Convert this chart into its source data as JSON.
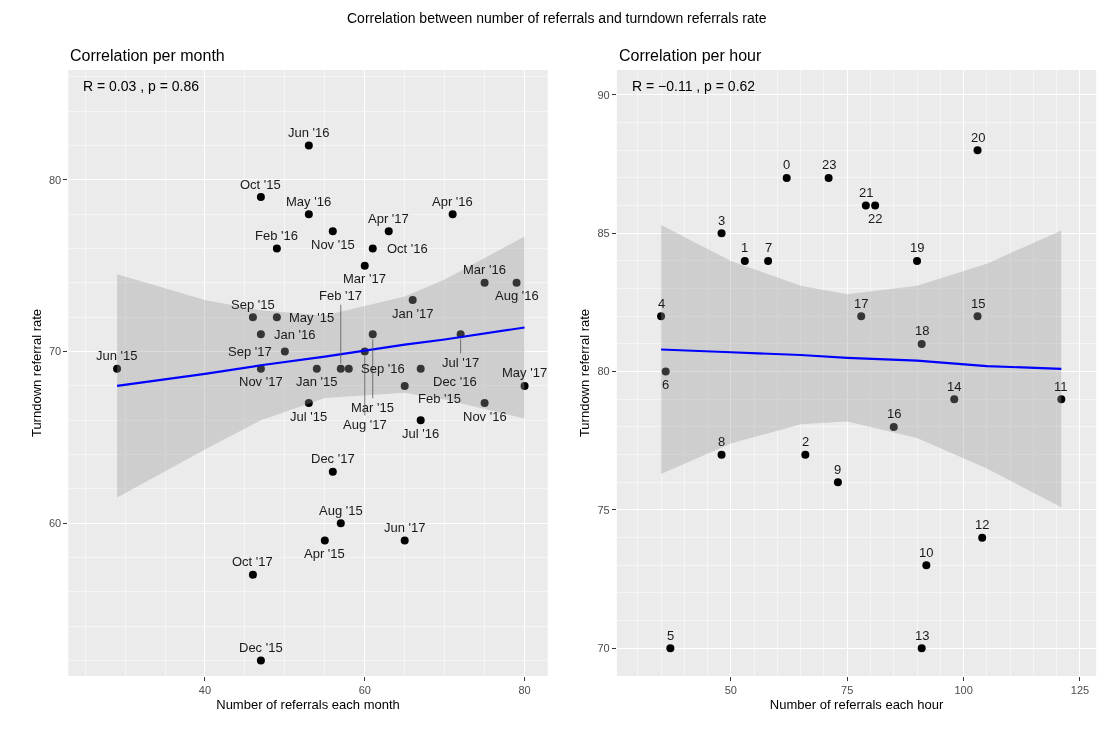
{
  "chart_data": [
    {
      "type": "scatter",
      "title": "Correlation per month",
      "xlabel": "Number of referrals each month",
      "ylabel": "Turndown referral rate",
      "xlim": [
        22.9,
        82.9
      ],
      "ylim": [
        51.1,
        86.4
      ],
      "xticks": [
        40,
        60,
        80
      ],
      "yticks": [
        60,
        70,
        80
      ],
      "grid": true,
      "series": [
        {
          "type": "scatter",
          "marker": "circle",
          "color": "#000000",
          "x": [
            53,
            47,
            53,
            56,
            63,
            71,
            49,
            61,
            60,
            75,
            79,
            66,
            46,
            49,
            47,
            61,
            72,
            50,
            60,
            29,
            47,
            54,
            57,
            58,
            67,
            65,
            80,
            75,
            53,
            67,
            56,
            57,
            55,
            65,
            46,
            47
          ],
          "values": [
            82,
            79,
            78,
            77,
            77,
            78,
            76,
            76,
            75,
            74,
            74,
            73,
            72,
            72,
            71,
            71,
            71,
            70,
            70,
            69,
            69,
            69,
            69,
            69,
            69,
            68,
            68,
            67,
            67,
            66,
            63,
            60,
            59,
            59,
            57,
            52
          ]
        },
        {
          "type": "line",
          "color": "#0000ff",
          "x": [
            29,
            40,
            47,
            55,
            65,
            70,
            80
          ],
          "values": [
            68.0,
            68.7,
            69.2,
            69.7,
            70.4,
            70.7,
            71.4
          ],
          "lower": [
            61.5,
            64.3,
            66.0,
            67.3,
            67.6,
            67.2,
            66.1
          ],
          "upper": [
            74.5,
            73.0,
            72.4,
            72.1,
            73.2,
            74.2,
            76.7
          ]
        }
      ],
      "annotations": [
        "Correlation between number of referrals and turndown referrals rate",
        "R = 0.03 , p = 0.86",
        {
          "text": "Jun '16",
          "x": 53,
          "y": 82
        },
        {
          "text": "Oct '15",
          "x": 47,
          "y": 79
        },
        {
          "text": "May '16",
          "x": 53,
          "y": 78
        },
        {
          "text": "Nov '15",
          "x": 56,
          "y": 77
        },
        {
          "text": "Apr '17",
          "x": 63,
          "y": 77
        },
        {
          "text": "Apr '16",
          "x": 71,
          "y": 78
        },
        {
          "text": "Feb '16",
          "x": 49,
          "y": 76
        },
        {
          "text": "Oct '16",
          "x": 61,
          "y": 76
        },
        {
          "text": "Mar '17",
          "x": 60,
          "y": 75
        },
        {
          "text": "Mar '16",
          "x": 75,
          "y": 74
        },
        {
          "text": "Aug '16",
          "x": 79,
          "y": 74
        },
        {
          "text": "Jan '17",
          "x": 66,
          "y": 73
        },
        {
          "text": "Sep '15",
          "x": 46,
          "y": 72
        },
        {
          "text": "May '15",
          "x": 49,
          "y": 72
        },
        {
          "text": "Jan '16",
          "x": 47,
          "y": 71
        },
        {
          "text": "Mar '15",
          "x": 61,
          "y": 71
        },
        {
          "text": "Jul '17",
          "x": 72,
          "y": 71
        },
        {
          "text": "Sep '17",
          "x": 50,
          "y": 70
        },
        {
          "text": "Aug '17",
          "x": 60,
          "y": 70
        },
        {
          "text": "Jun '15",
          "x": 29,
          "y": 69
        },
        {
          "text": "Nov '17",
          "x": 47,
          "y": 69
        },
        {
          "text": "Jan '15",
          "x": 54,
          "y": 69
        },
        {
          "text": "Feb '17",
          "x": 57,
          "y": 69
        },
        {
          "text": "Sep '16",
          "x": 58,
          "y": 69
        },
        {
          "text": "Dec '16",
          "x": 67,
          "y": 69
        },
        {
          "text": "Feb '15",
          "x": 65,
          "y": 68
        },
        {
          "text": "May '17",
          "x": 80,
          "y": 68
        },
        {
          "text": "Nov '16",
          "x": 75,
          "y": 67
        },
        {
          "text": "Jul '15",
          "x": 53,
          "y": 67
        },
        {
          "text": "Jul '16",
          "x": 67,
          "y": 66
        },
        {
          "text": "Dec '17",
          "x": 56,
          "y": 63
        },
        {
          "text": "Aug '15",
          "x": 57,
          "y": 60
        },
        {
          "text": "Apr '15",
          "x": 55,
          "y": 59
        },
        {
          "text": "Jun '17",
          "x": 65,
          "y": 59
        },
        {
          "text": "Oct '17",
          "x": 46,
          "y": 57
        },
        {
          "text": "Dec '15",
          "x": 47,
          "y": 52
        }
      ]
    },
    {
      "type": "scatter",
      "title": "Correlation per hour",
      "xlabel": "Number of referrals each hour",
      "ylabel": "Turndown referral rate",
      "xlim": [
        25.5,
        128.5
      ],
      "ylim": [
        69.0,
        90.9
      ],
      "xticks": [
        50,
        75,
        100,
        125
      ],
      "yticks": [
        70,
        75,
        80,
        85,
        90
      ],
      "grid": true,
      "series": [
        {
          "type": "scatter",
          "marker": "circle",
          "color": "#000000",
          "x": [
            62,
            53,
            66,
            48,
            35,
            37,
            36,
            58,
            48,
            73,
            92,
            121,
            104,
            91,
            98,
            103,
            85,
            78,
            91,
            90,
            103,
            79,
            81,
            71
          ],
          "values": [
            87,
            84,
            77,
            85,
            82,
            70,
            80,
            84,
            77,
            76,
            73,
            79,
            74,
            70,
            79,
            82,
            78,
            82,
            81,
            84,
            88,
            86,
            86,
            87
          ]
        },
        {
          "type": "line",
          "color": "#0000ff",
          "x": [
            35,
            50,
            65,
            75,
            90,
            105,
            121
          ],
          "values": [
            80.8,
            80.7,
            80.6,
            80.5,
            80.4,
            80.2,
            80.1
          ],
          "lower": [
            76.3,
            77.4,
            78.1,
            78.2,
            77.6,
            76.5,
            75.1
          ],
          "upper": [
            85.3,
            84.0,
            83.1,
            82.8,
            83.1,
            83.9,
            85.1
          ]
        }
      ],
      "annotations": [
        "R = −0.11 , p = 0.62",
        {
          "text": "0",
          "x": 62,
          "y": 87
        },
        {
          "text": "1",
          "x": 53,
          "y": 84
        },
        {
          "text": "2",
          "x": 66,
          "y": 77
        },
        {
          "text": "3",
          "x": 48,
          "y": 85
        },
        {
          "text": "4",
          "x": 35,
          "y": 82
        },
        {
          "text": "5",
          "x": 37,
          "y": 70
        },
        {
          "text": "6",
          "x": 36,
          "y": 80
        },
        {
          "text": "7",
          "x": 58,
          "y": 84
        },
        {
          "text": "8",
          "x": 48,
          "y": 77
        },
        {
          "text": "9",
          "x": 73,
          "y": 76
        },
        {
          "text": "10",
          "x": 92,
          "y": 73
        },
        {
          "text": "11",
          "x": 121,
          "y": 79
        },
        {
          "text": "12",
          "x": 104,
          "y": 74
        },
        {
          "text": "13",
          "x": 91,
          "y": 70
        },
        {
          "text": "14",
          "x": 98,
          "y": 79
        },
        {
          "text": "15",
          "x": 103,
          "y": 82
        },
        {
          "text": "16",
          "x": 85,
          "y": 78
        },
        {
          "text": "17",
          "x": 78,
          "y": 82
        },
        {
          "text": "18",
          "x": 91,
          "y": 81
        },
        {
          "text": "19",
          "x": 90,
          "y": 84
        },
        {
          "text": "20",
          "x": 103,
          "y": 88
        },
        {
          "text": "21",
          "x": 79,
          "y": 86
        },
        {
          "text": "22",
          "x": 81,
          "y": 86
        },
        {
          "text": "23",
          "x": 71,
          "y": 87
        }
      ]
    }
  ]
}
